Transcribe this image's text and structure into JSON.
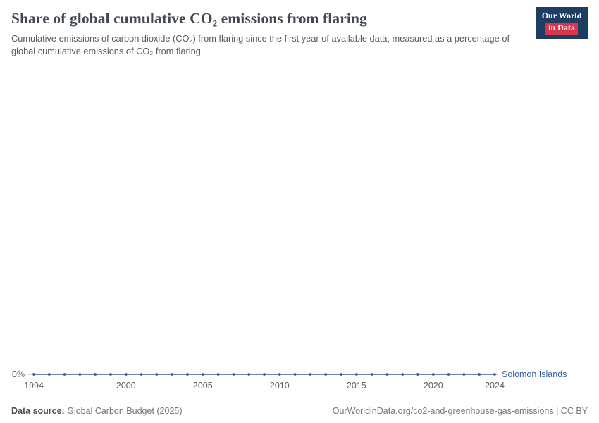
{
  "header": {
    "title": "Share of global cumulative CO₂ emissions from flaring",
    "subtitle": "Cumulative emissions of carbon dioxide (CO₂) from flaring since the first year of available data, measured as a percentage of global cumulative emissions of CO₂ from flaring.",
    "logo": {
      "line1": "Our World",
      "line2": "in Data"
    }
  },
  "chart_data": {
    "type": "line",
    "title": "Share of global cumulative CO₂ emissions from flaring",
    "unit": "%",
    "x": [
      1994,
      1995,
      1996,
      1997,
      1998,
      1999,
      2000,
      2001,
      2002,
      2003,
      2004,
      2005,
      2006,
      2007,
      2008,
      2009,
      2010,
      2011,
      2012,
      2013,
      2014,
      2015,
      2016,
      2017,
      2018,
      2019,
      2020,
      2021,
      2022,
      2023,
      2024
    ],
    "x_ticks": [
      1994,
      2000,
      2005,
      2010,
      2015,
      2020,
      2024
    ],
    "series": [
      {
        "name": "Solomon Islands",
        "values": [
          0,
          0,
          0,
          0,
          0,
          0,
          0,
          0,
          0,
          0,
          0,
          0,
          0,
          0,
          0,
          0,
          0,
          0,
          0,
          0,
          0,
          0,
          0,
          0,
          0,
          0,
          0,
          0,
          0,
          0,
          0
        ]
      }
    ],
    "y_ticks": [
      "0%"
    ],
    "y_tick_label": "0%",
    "ylim": [
      0,
      0
    ],
    "grid": false,
    "legend_position": "end-of-line"
  },
  "footer": {
    "source_label": "Data source:",
    "source": "Global Carbon Budget (2025)",
    "attribution": "OurWorldinData.org/co2-and-greenhouse-gas-emissions | CC BY"
  },
  "colors": {
    "line": "#3360a2",
    "axis": "#a9a9a9",
    "tick_text": "#5e5e5e",
    "logo_navy": "#1d3d63",
    "logo_red": "#dc354a"
  }
}
